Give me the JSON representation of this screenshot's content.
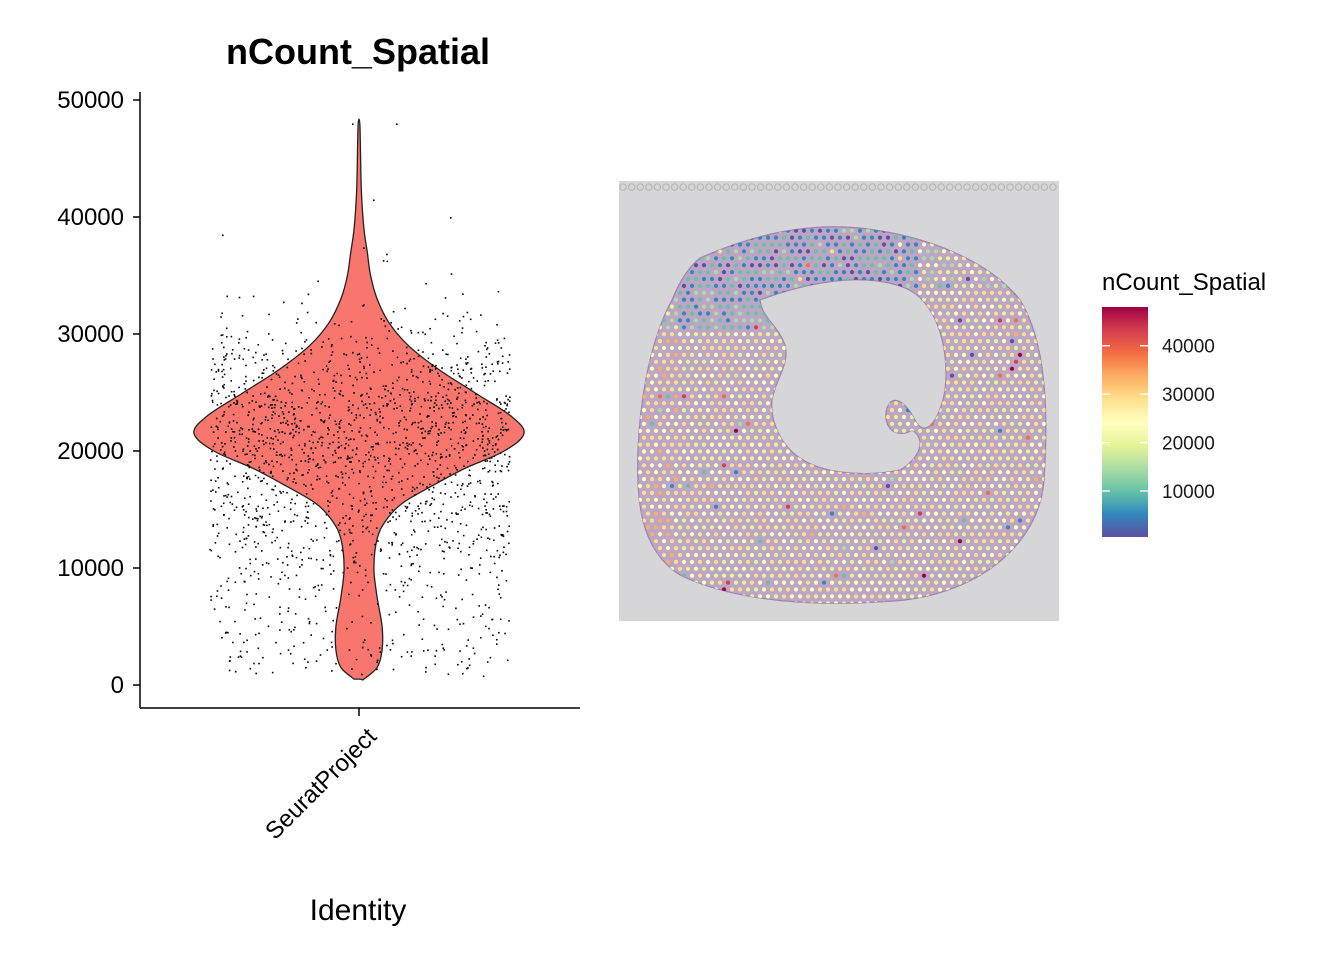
{
  "chart_data": [
    {
      "type": "violin",
      "title": "nCount_Spatial",
      "xlabel": "Identity",
      "ylabel": "",
      "categories": [
        "SeuratProject"
      ],
      "ylim": [
        0,
        50000
      ],
      "yticks": [
        0,
        10000,
        20000,
        30000,
        40000,
        50000
      ],
      "fill_color": "#F8766D",
      "points": "jittered",
      "series": [
        {
          "category": "SeuratProject",
          "min": 500,
          "max": 48000,
          "mode": 21500,
          "density_profile": [
            {
              "y": 500,
              "width": 0.03
            },
            {
              "y": 1500,
              "width": 0.11
            },
            {
              "y": 3000,
              "width": 0.14
            },
            {
              "y": 5000,
              "width": 0.14
            },
            {
              "y": 7500,
              "width": 0.11
            },
            {
              "y": 10000,
              "width": 0.09
            },
            {
              "y": 12500,
              "width": 0.11
            },
            {
              "y": 14000,
              "width": 0.16
            },
            {
              "y": 15500,
              "width": 0.26
            },
            {
              "y": 17000,
              "width": 0.44
            },
            {
              "y": 18500,
              "width": 0.64
            },
            {
              "y": 20000,
              "width": 0.88
            },
            {
              "y": 21500,
              "width": 1.0
            },
            {
              "y": 23000,
              "width": 0.92
            },
            {
              "y": 25000,
              "width": 0.7
            },
            {
              "y": 27000,
              "width": 0.48
            },
            {
              "y": 29000,
              "width": 0.3
            },
            {
              "y": 31000,
              "width": 0.18
            },
            {
              "y": 33000,
              "width": 0.11
            },
            {
              "y": 35000,
              "width": 0.07
            },
            {
              "y": 37000,
              "width": 0.05
            },
            {
              "y": 39000,
              "width": 0.03
            },
            {
              "y": 42000,
              "width": 0.015
            },
            {
              "y": 45000,
              "width": 0.01
            },
            {
              "y": 48000,
              "width": 0.005
            }
          ]
        }
      ]
    },
    {
      "type": "spatial",
      "legend_title": "nCount_Spatial",
      "legend_placement": "right",
      "colorbar_range": [
        500,
        48000
      ],
      "colorbar_ticks": [
        10000,
        20000,
        30000,
        40000
      ],
      "colormap": [
        "#5E4FA2",
        "#3288BD",
        "#66C2A5",
        "#ABDDA4",
        "#E6F598",
        "#FFFFBF",
        "#FEE08B",
        "#FDAE61",
        "#F46D43",
        "#D53E4F",
        "#9E0142"
      ]
    }
  ]
}
